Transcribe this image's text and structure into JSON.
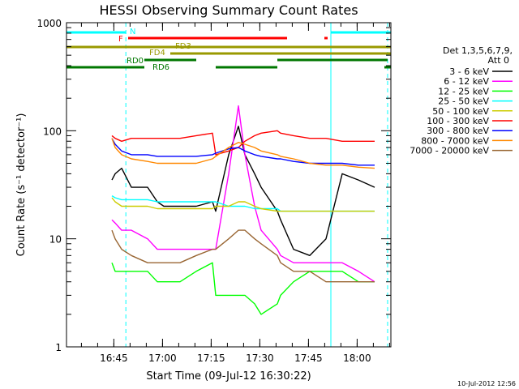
{
  "chart_data": {
    "type": "line",
    "title": "HESSI Observing Summary Count Rates",
    "xlabel": "Start Time (09-Jul-12 16:30:22)",
    "ylabel": "Count Rate (s⁻¹ detector⁻¹)",
    "ylog": true,
    "xrange_minutes": [
      0,
      100
    ],
    "ylim": [
      1,
      1000
    ],
    "x_ticks": [
      "16:45",
      "17:00",
      "17:15",
      "17:30",
      "17:45",
      "18:00"
    ],
    "y_ticks": [
      "1",
      "10",
      "100",
      "1000"
    ],
    "grid": false,
    "legend_position": "right",
    "legend_header": [
      "Det 1,3,5,6,7,9,",
      "Att 0"
    ],
    "timestamp": "10-Jul-2012 12:56",
    "flags": [
      {
        "label": "N",
        "color": "#00ffff",
        "segments": [
          [
            0,
            18.3
          ],
          [
            81.5,
            100
          ]
        ]
      },
      {
        "label": "F",
        "color": "#ff0000",
        "segments": [
          [
            19,
            68
          ],
          [
            79.5,
            80.5
          ]
        ]
      },
      {
        "label": "FD3",
        "color": "#999900",
        "segments": [
          [
            0,
            100
          ]
        ]
      },
      {
        "label": "FD4",
        "color": "#999900",
        "segments": [
          [
            32,
            100
          ]
        ]
      },
      {
        "label": "RD0",
        "color": "#007700",
        "segments": [
          [
            24,
            40
          ],
          [
            65,
            99
          ]
        ]
      },
      {
        "label": "RD6",
        "color": "#007700",
        "segments": [
          [
            0,
            24
          ],
          [
            46,
            65
          ],
          [
            98,
            100
          ]
        ]
      }
    ],
    "vlines": [
      {
        "x": 18.3,
        "color": "#00ffff",
        "dash": true
      },
      {
        "x": 81.5,
        "color": "#00ffff",
        "dash": false
      },
      {
        "x": 99,
        "color": "#00ffff",
        "dash": true
      }
    ],
    "x": [
      0,
      5,
      10,
      14,
      15,
      17,
      20,
      25,
      28,
      30,
      35,
      40,
      45,
      46,
      50,
      53,
      55,
      58,
      60,
      65,
      66,
      70,
      75,
      80,
      85,
      90,
      95,
      98,
      100
    ],
    "series": [
      {
        "name": "3 - 6 keV",
        "color": "#000000",
        "values": [
          null,
          null,
          null,
          35,
          40,
          45,
          30,
          30,
          22,
          20,
          20,
          20,
          22,
          18,
          60,
          110,
          60,
          40,
          30,
          18,
          15,
          8,
          7,
          10,
          40,
          35,
          30,
          null,
          null
        ]
      },
      {
        "name": "6 - 12 keV",
        "color": "#ff00ff",
        "values": [
          null,
          null,
          null,
          15,
          14,
          12,
          12,
          10,
          8,
          8,
          8,
          8,
          8,
          8,
          40,
          170,
          60,
          20,
          12,
          8,
          7,
          6,
          6,
          6,
          6,
          5,
          4,
          null,
          null
        ]
      },
      {
        "name": "12 - 25 keV",
        "color": "#00ff00",
        "values": [
          null,
          null,
          null,
          6,
          5,
          5,
          5,
          5,
          4,
          4,
          4,
          5,
          6,
          3,
          3,
          3,
          3,
          2.5,
          2,
          2.5,
          3,
          4,
          5,
          5,
          5,
          4,
          4,
          null,
          null
        ]
      },
      {
        "name": "25 - 50 keV",
        "color": "#00ffff",
        "values": [
          null,
          null,
          null,
          25,
          24,
          23,
          23,
          23,
          22,
          22,
          22,
          22,
          22,
          22,
          20,
          20,
          20,
          19,
          19,
          19,
          18,
          18,
          18,
          18,
          18,
          18,
          18,
          null,
          null
        ]
      },
      {
        "name": "50 - 100 keV",
        "color": "#cccc00",
        "values": [
          null,
          null,
          null,
          24,
          22,
          20,
          20,
          20,
          19,
          19,
          19,
          19,
          19,
          20,
          20,
          22,
          22,
          20,
          19,
          18,
          18,
          18,
          18,
          18,
          18,
          18,
          18,
          null,
          null
        ]
      },
      {
        "name": "100 - 300 keV",
        "color": "#ff0000",
        "values": [
          null,
          null,
          null,
          90,
          85,
          80,
          85,
          85,
          85,
          85,
          85,
          90,
          95,
          60,
          65,
          70,
          80,
          90,
          95,
          100,
          95,
          90,
          85,
          85,
          80,
          80,
          80,
          null,
          null
        ]
      },
      {
        "name": "300 - 800 keV",
        "color": "#0000ff",
        "values": [
          null,
          null,
          null,
          85,
          75,
          65,
          60,
          60,
          58,
          58,
          58,
          58,
          60,
          62,
          68,
          70,
          65,
          60,
          58,
          55,
          55,
          52,
          50,
          50,
          50,
          48,
          48,
          null,
          null
        ]
      },
      {
        "name": "800 - 7000 keV",
        "color": "#ff8800",
        "values": [
          null,
          null,
          null,
          85,
          70,
          60,
          55,
          52,
          50,
          50,
          50,
          50,
          55,
          58,
          70,
          78,
          75,
          70,
          65,
          60,
          58,
          55,
          50,
          48,
          48,
          46,
          45,
          null,
          null
        ]
      },
      {
        "name": "7000 - 20000 keV",
        "color": "#996633",
        "values": [
          null,
          null,
          null,
          12,
          10,
          8,
          7,
          6,
          6,
          6,
          6,
          7,
          8,
          8,
          10,
          12,
          12,
          10,
          9,
          7,
          6,
          5,
          5,
          4,
          4,
          4,
          4,
          null,
          null
        ]
      }
    ]
  }
}
